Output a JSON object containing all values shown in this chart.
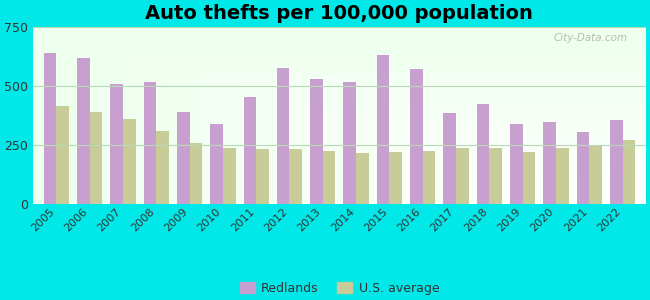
{
  "title": "Auto thefts per 100,000 population",
  "years": [
    2005,
    2006,
    2007,
    2008,
    2009,
    2010,
    2011,
    2012,
    2013,
    2014,
    2015,
    2016,
    2017,
    2018,
    2019,
    2020,
    2021,
    2022
  ],
  "redlands": [
    640,
    620,
    510,
    520,
    390,
    340,
    455,
    580,
    530,
    520,
    635,
    575,
    385,
    425,
    340,
    350,
    305,
    355
  ],
  "us_average": [
    415,
    390,
    360,
    310,
    260,
    240,
    235,
    235,
    225,
    215,
    220,
    225,
    240,
    240,
    220,
    240,
    250,
    270
  ],
  "ylim": [
    0,
    750
  ],
  "yticks": [
    0,
    250,
    500,
    750
  ],
  "bar_color_redlands": "#c8a0d0",
  "bar_color_us": "#c8cc99",
  "background_color_outer": "#00e8e8",
  "grid_color": "#b8d8b8",
  "title_fontsize": 14,
  "tick_fontsize": 8,
  "legend_labels": [
    "Redlands",
    "U.S. average"
  ],
  "bar_width": 0.38
}
